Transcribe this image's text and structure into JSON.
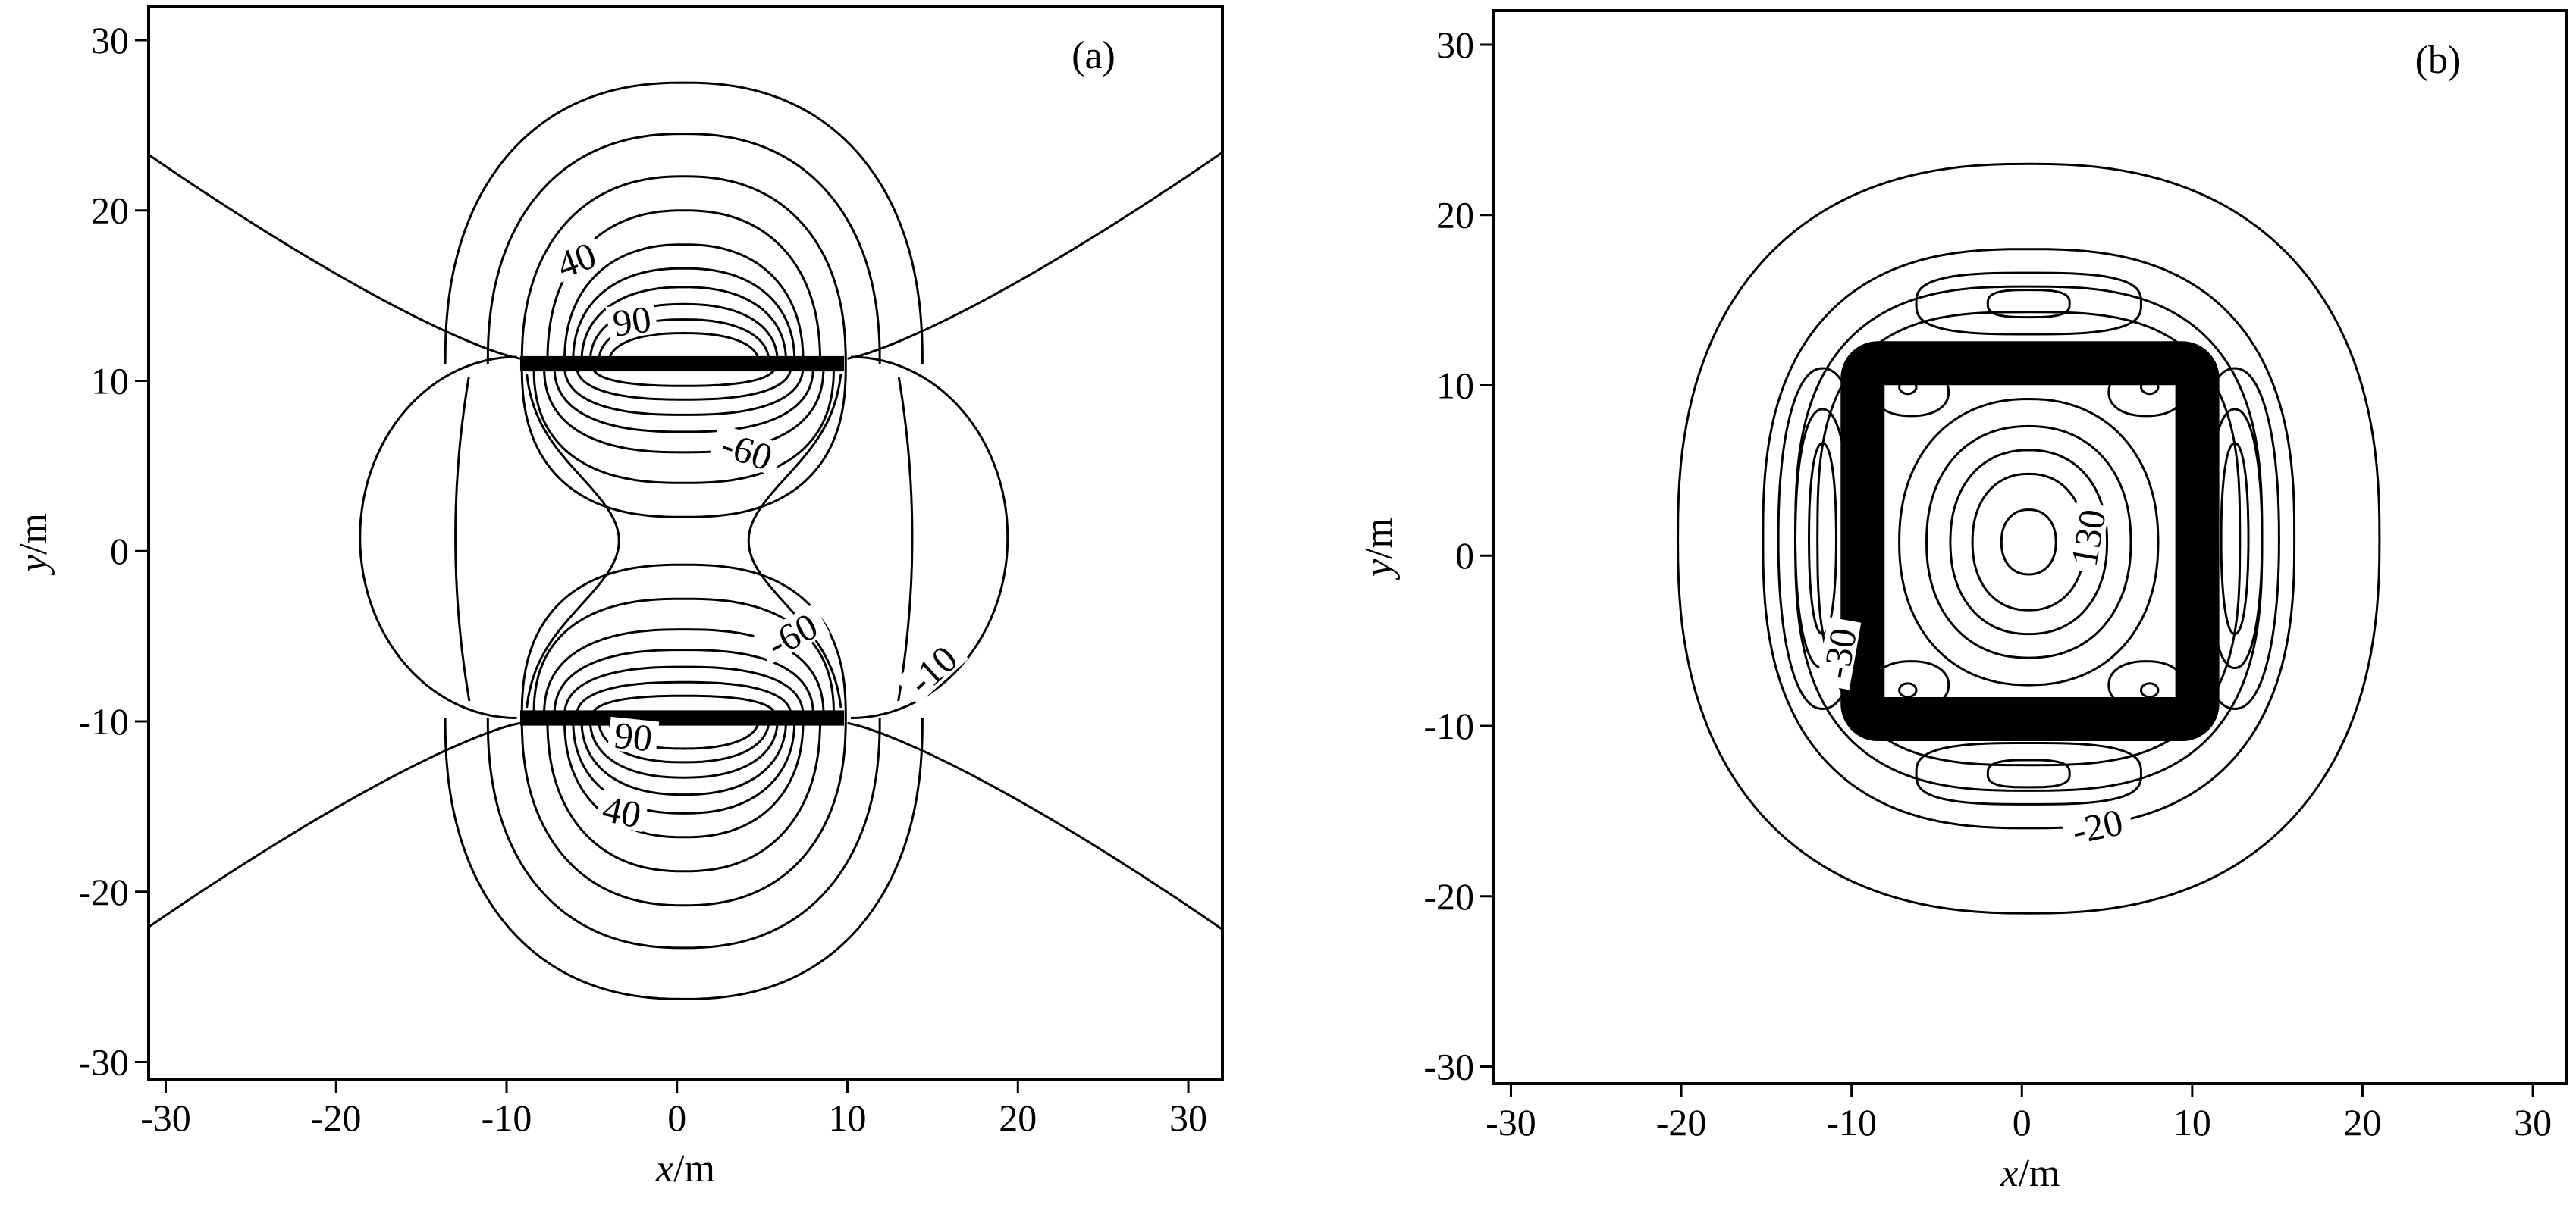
{
  "chart_data": [
    {
      "type": "contour",
      "panel_label": "(a)",
      "xlabel": "x/m",
      "ylabel": "y/m",
      "xlim": [
        -31,
        32
      ],
      "ylim": [
        -31,
        32
      ],
      "xticks": [
        -30,
        -20,
        -10,
        0,
        10,
        20,
        30
      ],
      "yticks": [
        -30,
        -20,
        -10,
        0,
        10,
        20,
        30
      ],
      "xtick_labels": [
        "-30",
        "-20",
        "-10",
        "0",
        "10",
        "20",
        "30"
      ],
      "ytick_labels": [
        "-30",
        "-20",
        "-10",
        "0",
        "10",
        "20",
        "30"
      ],
      "contour_labels": [
        {
          "text": "40",
          "x": -5.8,
          "y": 16.8,
          "angle": -20
        },
        {
          "text": "90",
          "x": -2.6,
          "y": 13.2,
          "angle": -8
        },
        {
          "text": "-60",
          "x": 4.0,
          "y": 5.6,
          "angle": 18
        },
        {
          "text": "-60",
          "x": 6.9,
          "y": -5.2,
          "angle": -28
        },
        {
          "text": "-10",
          "x": 15.2,
          "y": -7.2,
          "angle": -42
        },
        {
          "text": "90",
          "x": -2.6,
          "y": -11.2,
          "angle": 6
        },
        {
          "text": "40",
          "x": -3.3,
          "y": -15.6,
          "angle": 12
        }
      ]
    },
    {
      "type": "contour",
      "panel_label": "(b)",
      "xlabel": "x/m",
      "ylabel": "y/m",
      "xlim": [
        -31,
        32
      ],
      "ylim": [
        -31,
        32
      ],
      "xticks": [
        -30,
        -20,
        -10,
        0,
        10,
        20,
        30
      ],
      "yticks": [
        -30,
        -20,
        -10,
        0,
        10,
        20,
        30
      ],
      "xtick_labels": [
        "-30",
        "-20",
        "-10",
        "0",
        "10",
        "20",
        "30"
      ],
      "ytick_labels": [
        "-30",
        "-20",
        "-10",
        "0",
        "10",
        "20",
        "30"
      ],
      "contour_labels": [
        {
          "text": "130",
          "x": 4.2,
          "y": 1.0,
          "angle": -80
        },
        {
          "text": "-20",
          "x": 4.5,
          "y": -16.2,
          "angle": -12
        },
        {
          "text": "-30",
          "x": -10.4,
          "y": -5.8,
          "angle": -80
        }
      ]
    }
  ]
}
